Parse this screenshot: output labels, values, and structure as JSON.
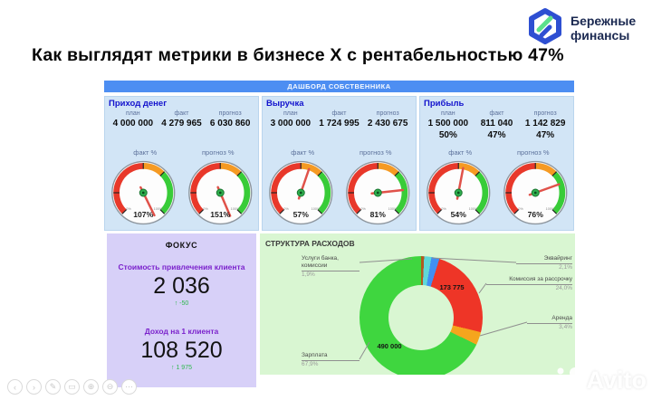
{
  "logo": {
    "brand_line1": "Бережные",
    "brand_line2": "финансы",
    "icon_blue": "#2e4fd2",
    "icon_green": "#5ce08c",
    "text_color": "#1a2850"
  },
  "title": "Как выглядят метрики в бизнесе X с рентабельностью 47%",
  "dashboard": {
    "header": "ДАШБОРД СОБСТВЕННИКА",
    "header_color": "#4d8ef2",
    "panel_bg": "#d2e5f6",
    "gauge_colors": {
      "low": "#e8382a",
      "mid": "#f59a23",
      "high": "#38cc38",
      "needle": "#e0524a"
    },
    "panels": [
      {
        "title": "Приход денег",
        "cols": [
          {
            "label": "план",
            "value": "4 000 000"
          },
          {
            "label": "факт",
            "value": "4 279 965"
          },
          {
            "label": "прогноз",
            "value": "6 030 860"
          }
        ],
        "gauges": [
          {
            "label": "факт %",
            "value": 107,
            "display": "107%"
          },
          {
            "label": "прогноз %",
            "value": 151,
            "display": "151%"
          }
        ]
      },
      {
        "title": "Выручка",
        "cols": [
          {
            "label": "план",
            "value": "3 000 000"
          },
          {
            "label": "факт",
            "value": "1 724 995"
          },
          {
            "label": "прогноз",
            "value": "2 430 675"
          }
        ],
        "gauges": [
          {
            "label": "факт %",
            "value": 57,
            "display": "57%"
          },
          {
            "label": "прогноз %",
            "value": 81,
            "display": "81%"
          }
        ]
      },
      {
        "title": "Прибыль",
        "cols": [
          {
            "label": "план",
            "value": "1 500 000",
            "percent": "50%"
          },
          {
            "label": "факт",
            "value": "811 040",
            "percent": "47%"
          },
          {
            "label": "прогноз",
            "value": "1 142 829",
            "percent": "47%"
          }
        ],
        "gauges": [
          {
            "label": "факт %",
            "value": 54,
            "display": "54%"
          },
          {
            "label": "прогноз %",
            "value": 76,
            "display": "76%"
          }
        ]
      }
    ]
  },
  "focus": {
    "header": "ФОКУС",
    "bg": "#d7d0f8",
    "accent": "#7b22cc",
    "delta_color": "#2db84d",
    "metrics": [
      {
        "label": "Стоимость привлечения клиента",
        "value": "2 036",
        "delta": "↑ -50"
      },
      {
        "label": "Доход на 1 клиента",
        "value": "108 520",
        "delta": "↑ 1 975"
      }
    ]
  },
  "chart_data": {
    "type": "pie",
    "title": "СТРУКТУРА РАСХОДОВ",
    "donut": true,
    "legend_position": "callouts",
    "bg": "#d9f6d2",
    "segments": [
      {
        "label": "",
        "pct_label": "",
        "percent": 0.8,
        "color": "#b05a20",
        "value_label": ""
      },
      {
        "label": "Услуги банка, комиссии",
        "pct_label": "1,9%",
        "percent": 1.9,
        "color": "#5ed8d8",
        "value_label": ""
      },
      {
        "label": "Эквайринг",
        "pct_label": "2,1%",
        "percent": 2.1,
        "color": "#418ff2",
        "value_label": ""
      },
      {
        "label": "Комиссия за рассрочку",
        "pct_label": "24,0%",
        "percent": 24.0,
        "color": "#ee3527",
        "value_label": "173 775"
      },
      {
        "label": "Аренда",
        "pct_label": "3,4%",
        "percent": 3.4,
        "color": "#f5a51d",
        "value_label": ""
      },
      {
        "label": "Зарплата",
        "pct_label": "67,9%",
        "percent": 67.9,
        "color": "#3fd63f",
        "value_label": "490 000"
      }
    ]
  },
  "toolbar": {
    "icons": [
      {
        "name": "prev",
        "glyph": "‹"
      },
      {
        "name": "next",
        "glyph": "›"
      },
      {
        "name": "pen",
        "glyph": "✎"
      },
      {
        "name": "shape",
        "glyph": "▭"
      },
      {
        "name": "zoom-in",
        "glyph": "⊕"
      },
      {
        "name": "zoom-out",
        "glyph": "⊖"
      },
      {
        "name": "more",
        "glyph": "⋯"
      }
    ]
  },
  "watermark": {
    "text": "Avito"
  }
}
